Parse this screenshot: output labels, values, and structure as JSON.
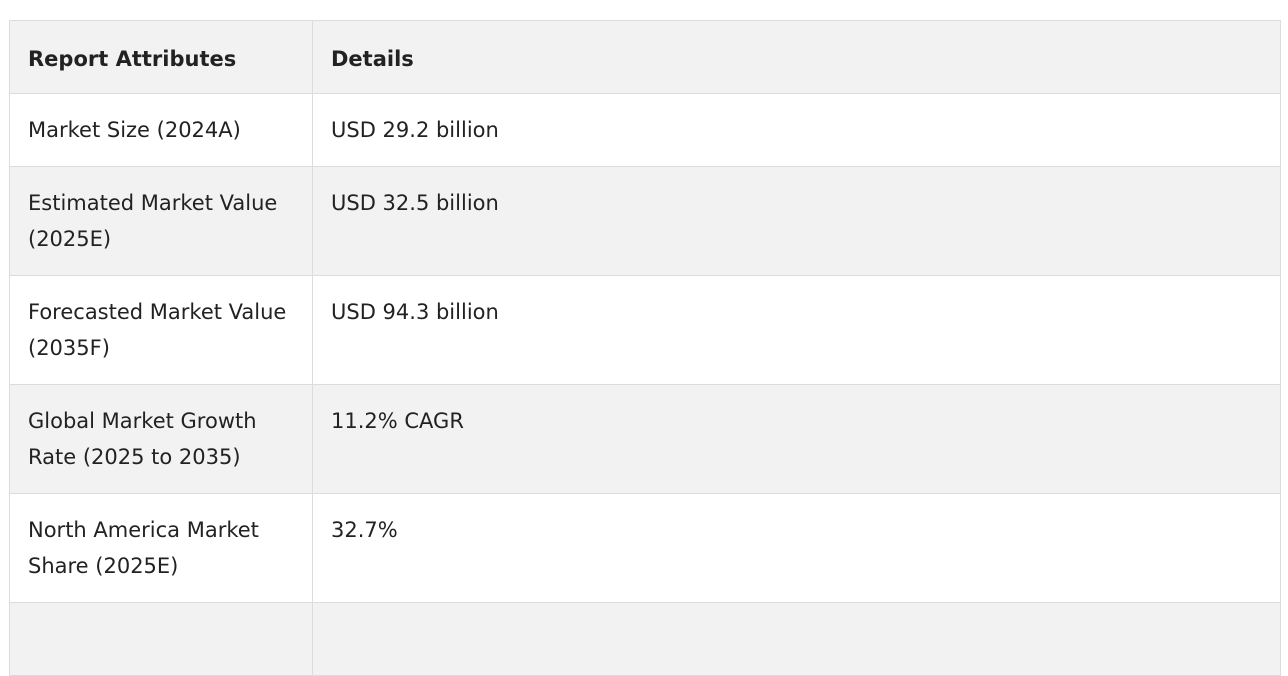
{
  "table": {
    "headers": [
      "Report Attributes",
      "Details"
    ],
    "rows": [
      {
        "attribute": "Market Size (2024A)",
        "detail": "USD 29.2 billion"
      },
      {
        "attribute": "Estimated Market Value (2025E)",
        "detail": "USD 32.5 billion"
      },
      {
        "attribute": "Forecasted Market Value (2035F)",
        "detail": "USD 94.3 billion"
      },
      {
        "attribute": "Global Market Growth Rate (2025 to 2035)",
        "detail": "11.2% CAGR"
      },
      {
        "attribute": "North America Market Share (2025E)",
        "detail": "32.7%"
      }
    ]
  },
  "colors": {
    "header_background": "#f2f2f2",
    "stripe_background": "#f2f2f2",
    "border": "#dcdcdc",
    "text": "#222222"
  }
}
